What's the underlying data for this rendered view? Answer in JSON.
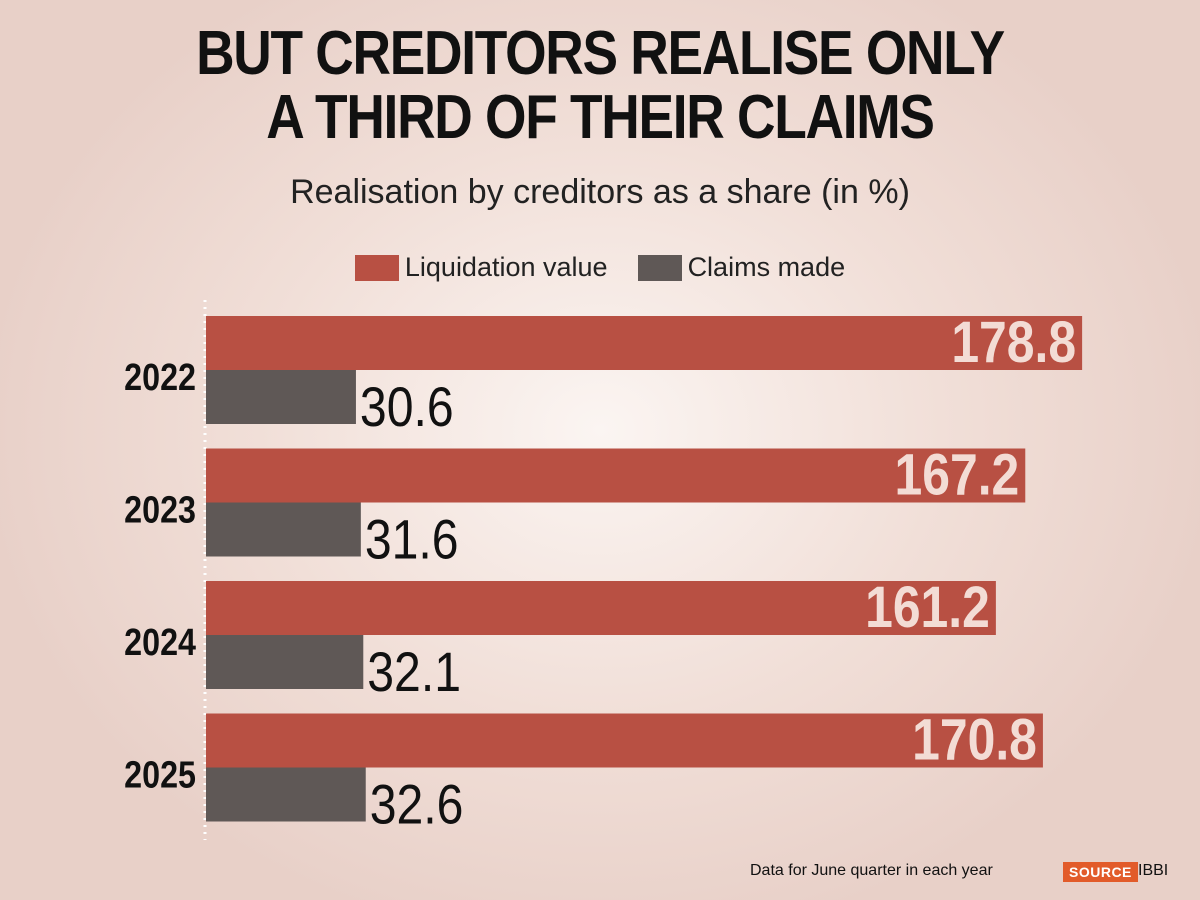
{
  "title_line1": "BUT CREDITORS REALISE ONLY",
  "title_line2": "A THIRD OF THEIR CLAIMS",
  "subtitle": "Realisation by creditors as a share (in %)",
  "footer_note": "Data for June quarter in each year",
  "source_label": "SOURCE",
  "source_value": "IBBI",
  "colors": {
    "liquidation": "#b85043",
    "claims": "#5f5856",
    "liquidation_label": "#f3dcd5",
    "claims_label": "#111111",
    "source_badge": "#e25b2a"
  },
  "chart_data": {
    "type": "bar",
    "orientation": "horizontal",
    "title": "BUT CREDITORS REALISE ONLY A THIRD OF THEIR CLAIMS",
    "subtitle": "Realisation by creditors as a share (in %)",
    "categories": [
      "2022",
      "2023",
      "2024",
      "2025"
    ],
    "series": [
      {
        "name": "Liquidation value",
        "values": [
          178.8,
          167.2,
          161.2,
          170.8
        ]
      },
      {
        "name": "Claims made",
        "values": [
          30.6,
          31.6,
          32.1,
          32.6
        ]
      }
    ],
    "legend_position": "top-center",
    "grid": false,
    "data_labels": true
  }
}
